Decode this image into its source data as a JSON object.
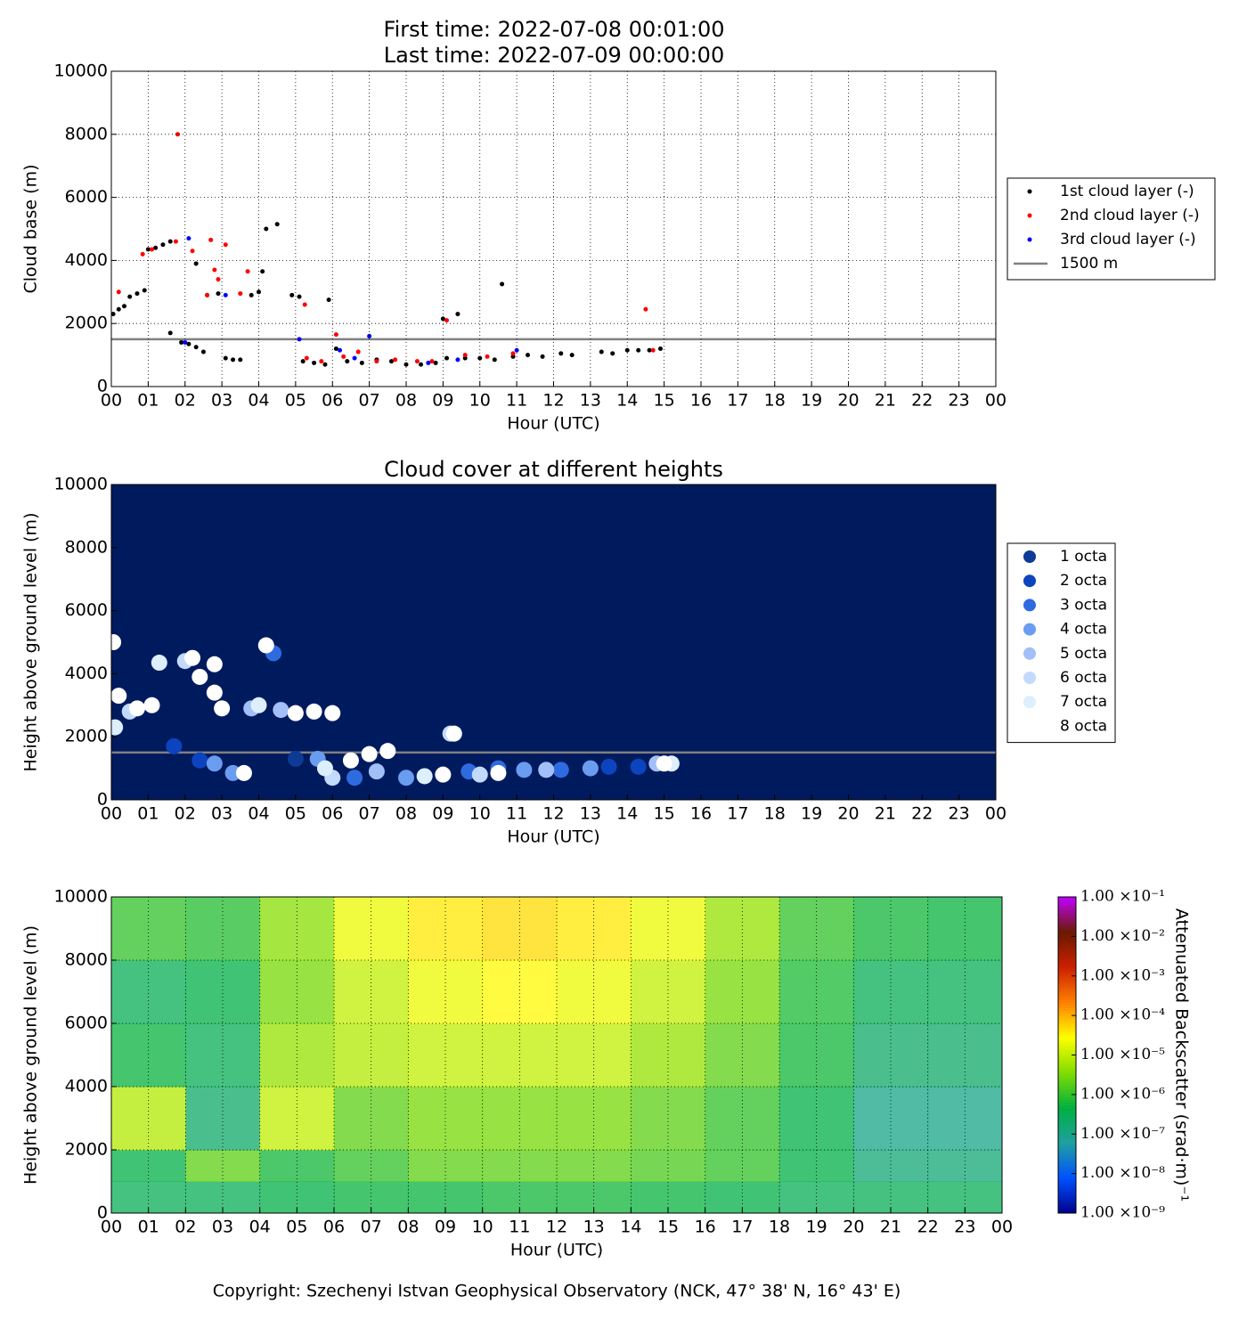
{
  "chart_data": [
    {
      "type": "scatter",
      "title": "First time: 2022-07-08 00:01:00",
      "subtitle": "Last time: 2022-07-09 00:00:00",
      "xlabel": "Hour (UTC)",
      "ylabel": "Cloud base (m)",
      "xlim": [
        0,
        24
      ],
      "ylim": [
        0,
        10000
      ],
      "xticks": [
        {
          "value": 0,
          "label": "00"
        },
        {
          "value": 1,
          "label": "01"
        },
        {
          "value": 2,
          "label": "02"
        },
        {
          "value": 3,
          "label": "03"
        },
        {
          "value": 4,
          "label": "04"
        },
        {
          "value": 5,
          "label": "05"
        },
        {
          "value": 6,
          "label": "06"
        },
        {
          "value": 7,
          "label": "07"
        },
        {
          "value": 8,
          "label": "08"
        },
        {
          "value": 9,
          "label": "09"
        },
        {
          "value": 10,
          "label": "10"
        },
        {
          "value": 11,
          "label": "11"
        },
        {
          "value": 12,
          "label": "12"
        },
        {
          "value": 13,
          "label": "13"
        },
        {
          "value": 14,
          "label": "14"
        },
        {
          "value": 15,
          "label": "15"
        },
        {
          "value": 16,
          "label": "16"
        },
        {
          "value": 17,
          "label": "17"
        },
        {
          "value": 18,
          "label": "18"
        },
        {
          "value": 19,
          "label": "19"
        },
        {
          "value": 20,
          "label": "20"
        },
        {
          "value": 21,
          "label": "21"
        },
        {
          "value": 22,
          "label": "22"
        },
        {
          "value": 23,
          "label": "23"
        },
        {
          "value": 24,
          "label": "00"
        }
      ],
      "yticks": [
        0,
        2000,
        4000,
        6000,
        8000,
        10000
      ],
      "grid": true,
      "legend": "outside right",
      "marker_size": 2.5,
      "series": [
        {
          "name": "1st cloud layer (-)",
          "color": "#000000",
          "x": [
            0.05,
            0.2,
            0.35,
            0.5,
            0.7,
            0.9,
            1.0,
            1.2,
            1.4,
            1.6,
            1.6,
            1.9,
            2.1,
            2.3,
            2.5,
            2.3,
            2.6,
            2.9,
            3.1,
            3.3,
            3.5,
            3.8,
            4.0,
            4.1,
            4.2,
            4.5,
            4.9,
            5.1,
            5.2,
            5.5,
            5.8,
            5.9,
            6.1,
            6.4,
            6.8,
            7.2,
            7.6,
            8.0,
            8.4,
            8.8,
            9.0,
            9.1,
            9.4,
            9.6,
            10.0,
            10.4,
            10.6,
            10.9,
            11.3,
            11.7,
            12.2,
            12.5,
            13.3,
            13.6,
            14.0,
            14.3,
            14.6,
            14.9
          ],
          "values": [
            2300,
            2450,
            2550,
            2850,
            2950,
            3050,
            4350,
            4400,
            4500,
            4600,
            1700,
            1400,
            1350,
            1250,
            1100,
            3900,
            2900,
            2950,
            900,
            850,
            850,
            2900,
            3000,
            3650,
            5000,
            5150,
            2900,
            2850,
            800,
            750,
            700,
            2750,
            1200,
            800,
            750,
            850,
            800,
            700,
            700,
            750,
            2150,
            900,
            2300,
            900,
            900,
            850,
            3250,
            950,
            1000,
            950,
            1050,
            1000,
            1100,
            1050,
            1150,
            1150,
            1150,
            1200
          ]
        },
        {
          "name": "2nd cloud layer (-)",
          "color": "#ff0000",
          "x": [
            0.2,
            0.85,
            1.1,
            1.8,
            1.75,
            2.2,
            2.6,
            2.7,
            2.8,
            2.9,
            3.1,
            3.5,
            3.7,
            5.25,
            5.3,
            5.7,
            6.1,
            6.3,
            6.7,
            7.2,
            7.7,
            8.3,
            8.7,
            9.1,
            9.6,
            10.2,
            10.9,
            14.5,
            14.7
          ],
          "values": [
            3000,
            4200,
            4350,
            8000,
            4600,
            4300,
            2900,
            4650,
            3700,
            3400,
            4500,
            2950,
            3650,
            2600,
            900,
            800,
            1650,
            950,
            1100,
            800,
            850,
            800,
            800,
            2100,
            1000,
            950,
            1050,
            2450,
            1150
          ]
        },
        {
          "name": "3rd cloud layer (-)",
          "color": "#0000ff",
          "x": [
            2.1,
            2.0,
            3.1,
            5.1,
            6.2,
            6.6,
            7.0,
            8.6,
            9.4,
            11.0
          ],
          "values": [
            4700,
            1400,
            2900,
            1500,
            1150,
            900,
            1600,
            750,
            850,
            1150
          ]
        }
      ],
      "hlines": [
        {
          "name": "1500 m",
          "value": 1500,
          "color": "#808080"
        }
      ]
    },
    {
      "type": "scatter",
      "title": "Cloud cover at different heights",
      "xlabel": "Hour (UTC)",
      "ylabel": "Height above ground level (m)",
      "xlim": [
        0,
        24
      ],
      "ylim": [
        0,
        10000
      ],
      "xticks": [
        {
          "value": 0,
          "label": "00"
        },
        {
          "value": 1,
          "label": "01"
        },
        {
          "value": 2,
          "label": "02"
        },
        {
          "value": 3,
          "label": "03"
        },
        {
          "value": 4,
          "label": "04"
        },
        {
          "value": 5,
          "label": "05"
        },
        {
          "value": 6,
          "label": "06"
        },
        {
          "value": 7,
          "label": "07"
        },
        {
          "value": 8,
          "label": "08"
        },
        {
          "value": 9,
          "label": "09"
        },
        {
          "value": 10,
          "label": "10"
        },
        {
          "value": 11,
          "label": "11"
        },
        {
          "value": 12,
          "label": "12"
        },
        {
          "value": 13,
          "label": "13"
        },
        {
          "value": 14,
          "label": "14"
        },
        {
          "value": 15,
          "label": "15"
        },
        {
          "value": 16,
          "label": "16"
        },
        {
          "value": 17,
          "label": "17"
        },
        {
          "value": 18,
          "label": "18"
        },
        {
          "value": 19,
          "label": "19"
        },
        {
          "value": 20,
          "label": "20"
        },
        {
          "value": 21,
          "label": "21"
        },
        {
          "value": 22,
          "label": "22"
        },
        {
          "value": 23,
          "label": "23"
        },
        {
          "value": 24,
          "label": "00"
        }
      ],
      "yticks": [
        0,
        2000,
        4000,
        6000,
        8000,
        10000
      ],
      "grid": false,
      "legend": "outside right",
      "background": "#001a5e",
      "marker_size": 9,
      "series": [
        {
          "name": "1 octa",
          "color": "#0d3a94",
          "x": [
            5.0
          ],
          "values": [
            1300
          ]
        },
        {
          "name": "2 octa",
          "color": "#0c44c0",
          "x": [
            1.7,
            2.4,
            13.5,
            14.3
          ],
          "values": [
            1700,
            1250,
            1050,
            1050
          ]
        },
        {
          "name": "3 octa",
          "color": "#2f6be0",
          "x": [
            4.4,
            6.6,
            9.7,
            10.5,
            12.2
          ],
          "values": [
            4650,
            700,
            900,
            1000,
            950
          ]
        },
        {
          "name": "4 octa",
          "color": "#6a9cf0",
          "x": [
            2.8,
            3.3,
            5.6,
            8.0,
            11.2,
            13.0
          ],
          "values": [
            1150,
            850,
            1300,
            700,
            950,
            1000
          ]
        },
        {
          "name": "5 octa",
          "color": "#a2c0f7",
          "x": [
            3.8,
            4.6,
            7.2,
            11.8,
            14.8
          ],
          "values": [
            2900,
            2850,
            900,
            950,
            1150
          ]
        },
        {
          "name": "6 octa",
          "color": "#c2dafb",
          "x": [
            0.5,
            2.0,
            6.0,
            9.2,
            10.0
          ],
          "values": [
            2800,
            4400,
            700,
            2100,
            800
          ]
        },
        {
          "name": "7 octa",
          "color": "#ddeefd",
          "x": [
            0.1,
            1.3,
            4.0,
            5.8,
            8.5,
            15.2
          ],
          "values": [
            2300,
            4350,
            3000,
            1000,
            750,
            1150
          ]
        },
        {
          "name": "8 octa",
          "color": "#ffffff",
          "x": [
            0.05,
            0.2,
            0.7,
            1.1,
            2.2,
            2.4,
            2.8,
            2.8,
            3.0,
            3.6,
            4.2,
            5.0,
            5.5,
            6.0,
            6.5,
            7.0,
            7.5,
            9.3,
            9.0,
            10.5,
            15.0
          ],
          "values": [
            5000,
            3300,
            2900,
            3000,
            4500,
            3900,
            4300,
            3400,
            2900,
            850,
            4900,
            2750,
            2800,
            2750,
            1250,
            1450,
            1550,
            2100,
            800,
            850,
            1150
          ]
        }
      ],
      "hlines": [
        {
          "value": 1500,
          "color": "#808080"
        }
      ]
    },
    {
      "type": "heatmap",
      "xlabel": "Hour (UTC)",
      "ylabel": "Height above ground level (m)",
      "xlim": [
        0,
        24
      ],
      "ylim": [
        0,
        10000
      ],
      "xticks": [
        {
          "value": 0,
          "label": "00"
        },
        {
          "value": 1,
          "label": "01"
        },
        {
          "value": 2,
          "label": "02"
        },
        {
          "value": 3,
          "label": "03"
        },
        {
          "value": 4,
          "label": "04"
        },
        {
          "value": 5,
          "label": "05"
        },
        {
          "value": 6,
          "label": "06"
        },
        {
          "value": 7,
          "label": "07"
        },
        {
          "value": 8,
          "label": "08"
        },
        {
          "value": 9,
          "label": "09"
        },
        {
          "value": 10,
          "label": "10"
        },
        {
          "value": 11,
          "label": "11"
        },
        {
          "value": 12,
          "label": "12"
        },
        {
          "value": 13,
          "label": "13"
        },
        {
          "value": 14,
          "label": "14"
        },
        {
          "value": 15,
          "label": "15"
        },
        {
          "value": 16,
          "label": "16"
        },
        {
          "value": 17,
          "label": "17"
        },
        {
          "value": 18,
          "label": "18"
        },
        {
          "value": 19,
          "label": "19"
        },
        {
          "value": 20,
          "label": "20"
        },
        {
          "value": 21,
          "label": "21"
        },
        {
          "value": 22,
          "label": "22"
        },
        {
          "value": 23,
          "label": "23"
        },
        {
          "value": 24,
          "label": "00"
        }
      ],
      "yticks": [
        0,
        2000,
        4000,
        6000,
        8000,
        10000
      ],
      "grid": true,
      "xbins": [
        0,
        2,
        4,
        6,
        8,
        10,
        12,
        14,
        16,
        18,
        20,
        22,
        24
      ],
      "ybins": [
        0,
        1000,
        2000,
        4000,
        6000,
        8000,
        10000
      ],
      "values": [
        [
          3e-07,
          3e-07,
          4e-07,
          5e-07,
          5e-07,
          6e-07,
          6e-07,
          5e-07,
          4e-07,
          3e-07,
          3e-07,
          3e-07
        ],
        [
          4e-07,
          2e-06,
          6e-07,
          1e-06,
          2e-06,
          2e-06,
          2e-06,
          1.5e-06,
          1e-06,
          4e-07,
          1.5e-07,
          1.5e-07
        ],
        [
          8e-06,
          2e-07,
          1e-05,
          2e-06,
          3e-06,
          3e-06,
          3e-06,
          2e-06,
          1e-06,
          4e-07,
          1e-07,
          1e-07
        ],
        [
          5e-07,
          3e-07,
          5e-06,
          8e-06,
          1e-05,
          1e-05,
          1e-05,
          5e-06,
          2e-06,
          6e-07,
          2e-07,
          2e-07
        ],
        [
          3e-07,
          4e-07,
          3e-06,
          1e-05,
          2e-05,
          3e-05,
          2e-05,
          1e-05,
          3e-06,
          7e-07,
          3e-07,
          3e-07
        ],
        [
          1e-06,
          8e-07,
          4e-06,
          2e-05,
          4e-05,
          5e-05,
          4e-05,
          2e-05,
          5e-06,
          1e-06,
          6e-07,
          5e-07
        ]
      ],
      "colorbar": {
        "label": "Attenuated Backscatter (srad·m)⁻¹",
        "log": true,
        "lim": [
          1e-09,
          0.1
        ],
        "colors": [
          "#00008c",
          "#0050ff",
          "#1fa0a0",
          "#00b040",
          "#80dc00",
          "#ffff00",
          "#ff8000",
          "#cc2000",
          "#6a1a00",
          "#c000ff"
        ],
        "ticks": [
          {
            "value": 1e-09,
            "label": "1.00 ×10⁻⁹"
          },
          {
            "value": 1e-08,
            "label": "1.00 ×10⁻⁸"
          },
          {
            "value": 1e-07,
            "label": "1.00 ×10⁻⁷"
          },
          {
            "value": 1e-06,
            "label": "1.00 ×10⁻⁶"
          },
          {
            "value": 1e-05,
            "label": "1.00 ×10⁻⁵"
          },
          {
            "value": 0.0001,
            "label": "1.00 ×10⁻⁴"
          },
          {
            "value": 0.001,
            "label": "1.00 ×10⁻³"
          },
          {
            "value": 0.01,
            "label": "1.00 ×10⁻²"
          },
          {
            "value": 0.1,
            "label": "1.00 ×10⁻¹"
          }
        ]
      }
    }
  ],
  "footer": "Copyright: Szechenyi Istvan Geophysical Observatory (NCK, 47° 38' N, 16° 43' E)"
}
